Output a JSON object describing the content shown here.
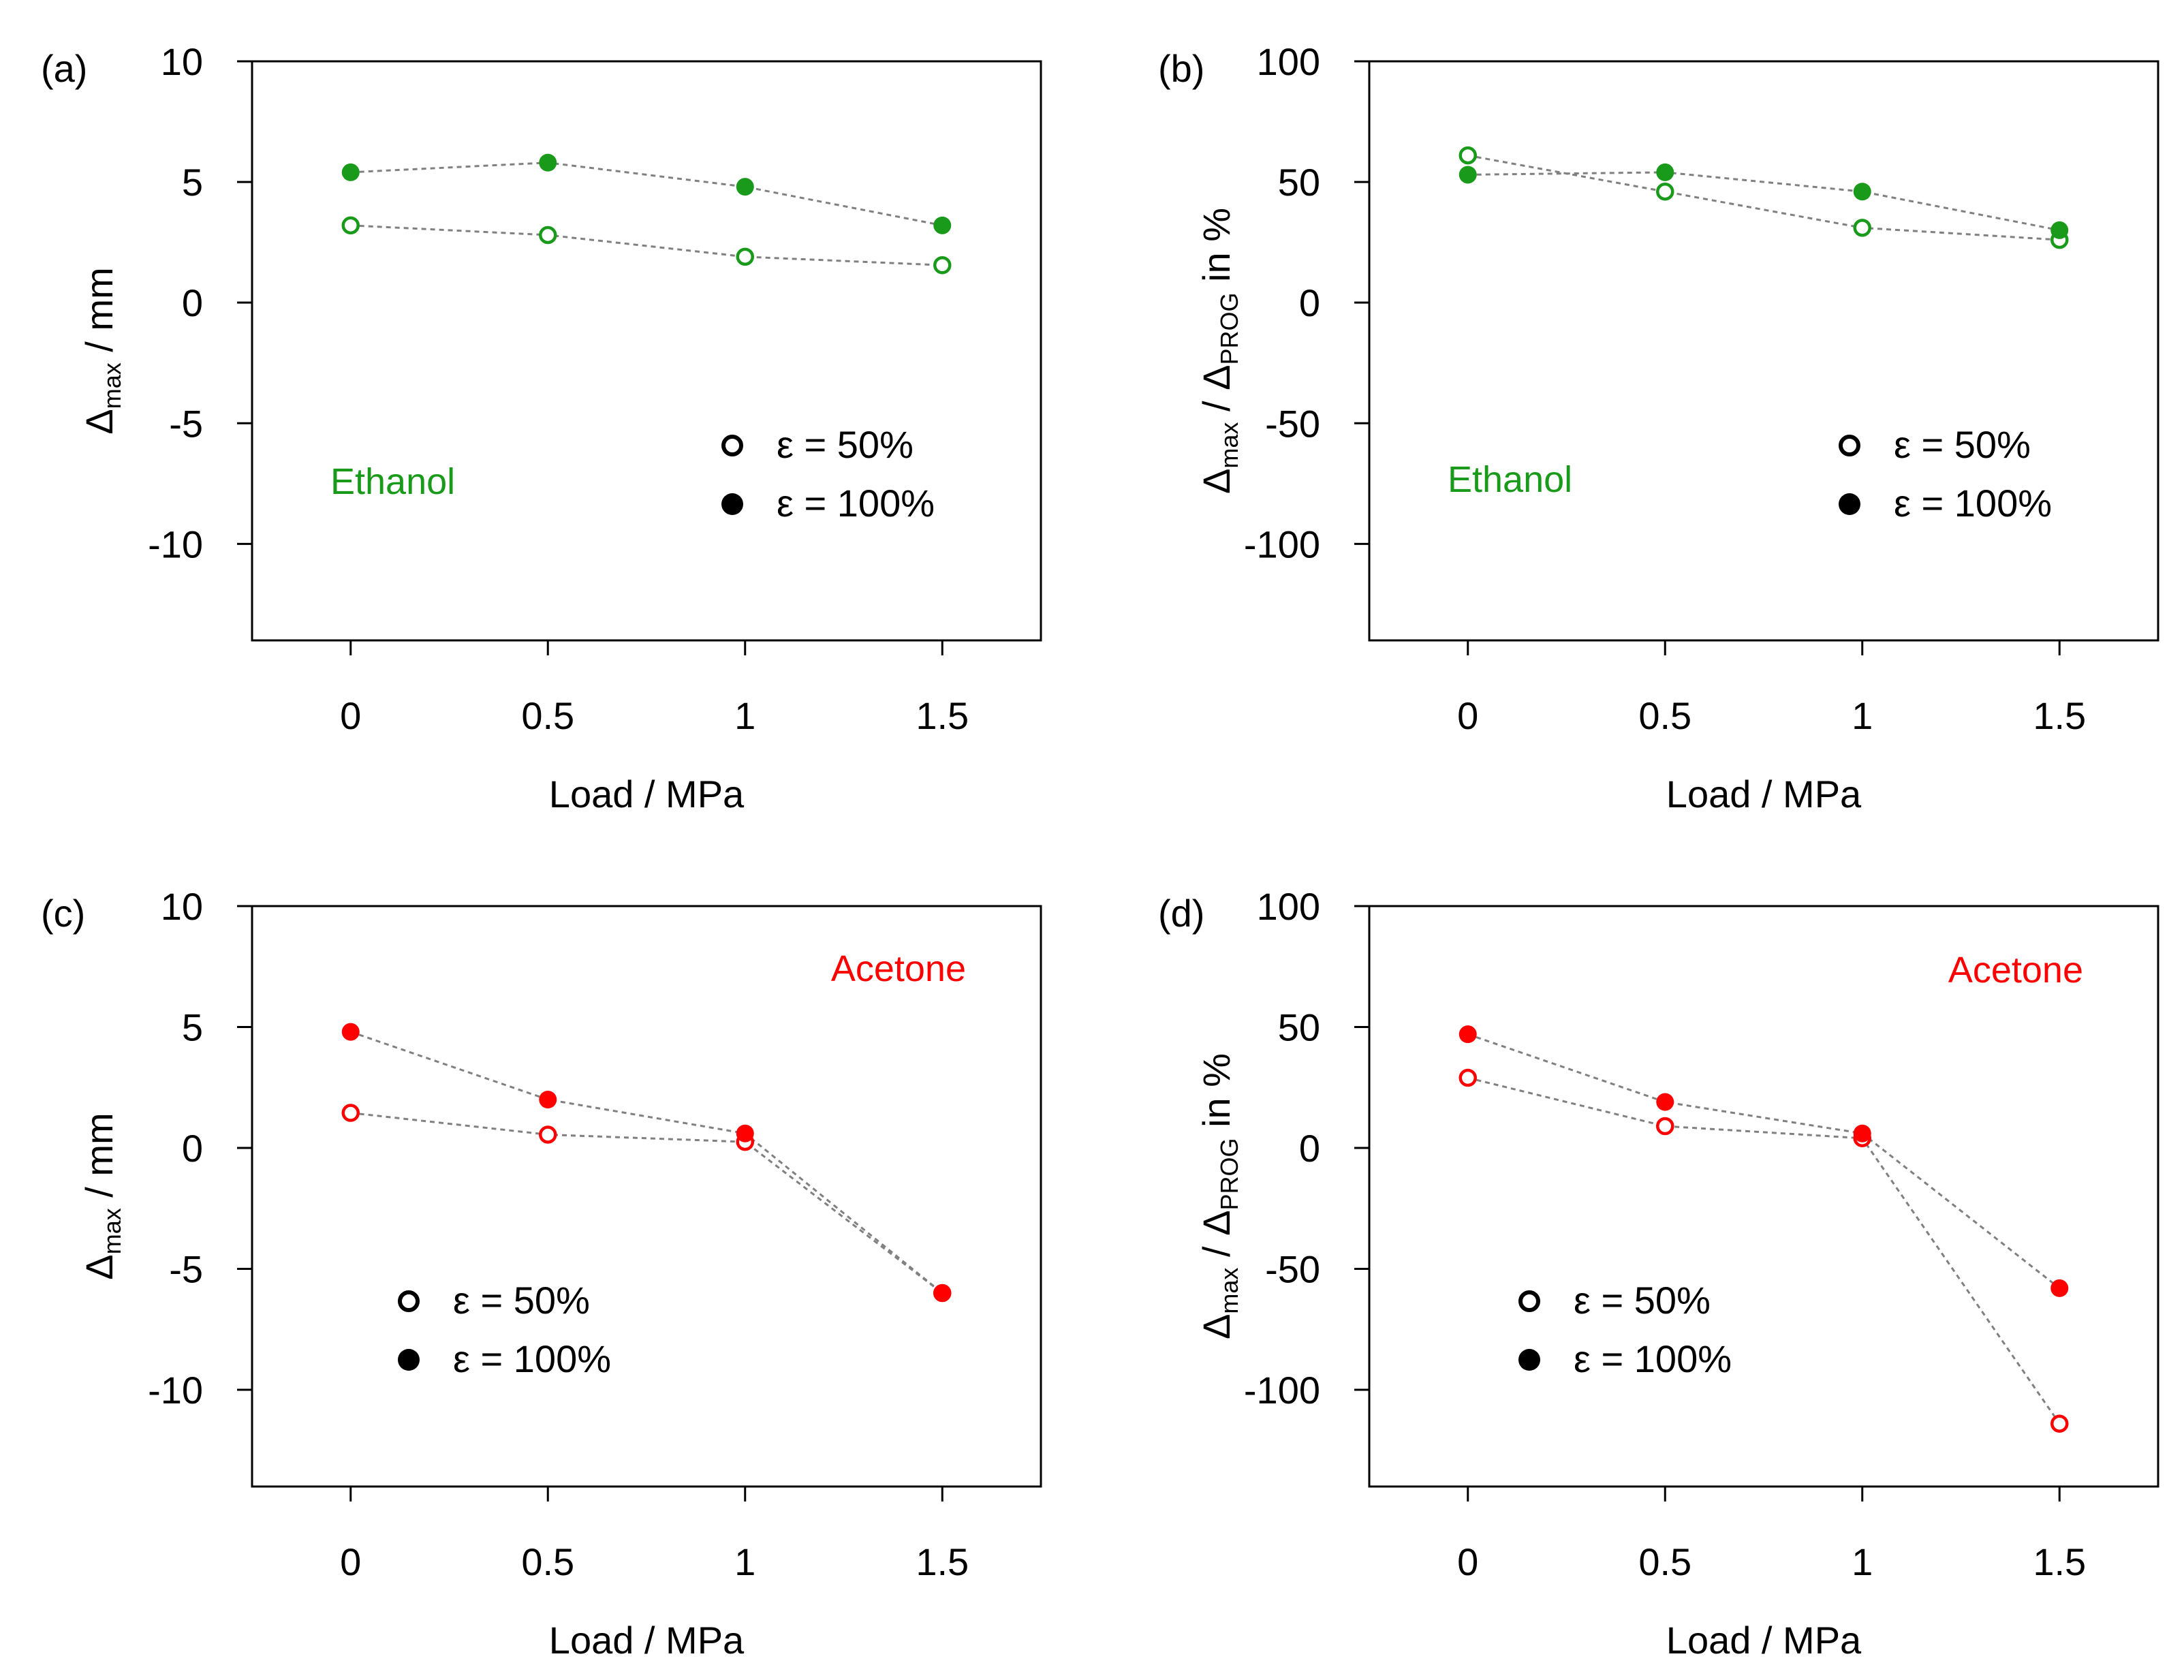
{
  "figure": {
    "series_names": [
      "ε = 50%",
      "ε = 100%"
    ],
    "colors": {
      "ethanol": "#1a9a1a",
      "acetone": "#ff0000",
      "connector": "#808080",
      "axis": "#000000",
      "legend_marker": "#000000"
    }
  },
  "chart_data": [
    {
      "id": "a",
      "type": "scatter",
      "panel_label": "(a)",
      "annotation": "Ethanol",
      "color": "#1a9a1a",
      "xlabel": "Load / MPa",
      "ylabel": {
        "base": "Δ",
        "sub": "max",
        "rest": " / mm"
      },
      "x": [
        0,
        0.5,
        1,
        1.5
      ],
      "xticks": [
        "0",
        "0.5",
        "1",
        "1.5"
      ],
      "xlim": [
        -0.25,
        1.75
      ],
      "ylim": [
        -14,
        10
      ],
      "yticks": [
        10,
        5,
        0,
        -5,
        -10
      ],
      "yticklabels": [
        "10",
        "5",
        "0",
        "-5",
        "-10"
      ],
      "legend": {
        "placement": "bottom-right",
        "entries": [
          "ε = 50%",
          "ε = 100%"
        ]
      },
      "series": [
        {
          "name": "ε = 50%",
          "filled": false,
          "values": [
            3.2,
            2.8,
            1.9,
            1.55
          ]
        },
        {
          "name": "ε = 100%",
          "filled": true,
          "values": [
            5.4,
            5.8,
            4.8,
            3.2
          ]
        }
      ]
    },
    {
      "id": "b",
      "type": "scatter",
      "panel_label": "(b)",
      "annotation": "Ethanol",
      "color": "#1a9a1a",
      "xlabel": "Load / MPa",
      "ylabel": {
        "base": "Δ",
        "sub": "max",
        "mid": " / Δ",
        "sub2": "PROG",
        "rest": " in %"
      },
      "x": [
        0,
        0.5,
        1,
        1.5
      ],
      "xticks": [
        "0",
        "0.5",
        "1",
        "1.5"
      ],
      "xlim": [
        -0.25,
        1.75
      ],
      "ylim": [
        -140,
        100
      ],
      "yticks": [
        100,
        50,
        0,
        -50,
        -100
      ],
      "yticklabels": [
        "100",
        "50",
        "0",
        "-50",
        "-100"
      ],
      "legend": {
        "placement": "bottom-right",
        "entries": [
          "ε = 50%",
          "ε = 100%"
        ]
      },
      "series": [
        {
          "name": "ε = 50%",
          "filled": false,
          "values": [
            61,
            46,
            31,
            26
          ]
        },
        {
          "name": "ε = 100%",
          "filled": true,
          "values": [
            53,
            54,
            46,
            30
          ]
        }
      ]
    },
    {
      "id": "c",
      "type": "scatter",
      "panel_label": "(c)",
      "annotation": "Acetone",
      "color": "#ff0000",
      "xlabel": "Load / MPa",
      "ylabel": {
        "base": "Δ",
        "sub": "max",
        "rest": " / mm"
      },
      "x": [
        0,
        0.5,
        1,
        1.5
      ],
      "xticks": [
        "0",
        "0.5",
        "1",
        "1.5"
      ],
      "xlim": [
        -0.25,
        1.75
      ],
      "ylim": [
        -14,
        10
      ],
      "yticks": [
        10,
        5,
        0,
        -5,
        -10
      ],
      "yticklabels": [
        "10",
        "5",
        "0",
        "-5",
        "-10"
      ],
      "legend": {
        "placement": "bottom-left",
        "entries": [
          "ε = 50%",
          "ε = 100%"
        ]
      },
      "series": [
        {
          "name": "ε = 50%",
          "filled": false,
          "values": [
            1.45,
            0.55,
            0.25,
            -6.0
          ]
        },
        {
          "name": "ε = 100%",
          "filled": true,
          "values": [
            4.8,
            2.0,
            0.6,
            -6.0
          ]
        }
      ]
    },
    {
      "id": "d",
      "type": "scatter",
      "panel_label": "(d)",
      "annotation": "Acetone",
      "color": "#ff0000",
      "xlabel": "Load / MPa",
      "ylabel": {
        "base": "Δ",
        "sub": "max",
        "mid": " / Δ",
        "sub2": "PROG",
        "rest": " in %"
      },
      "x": [
        0,
        0.5,
        1,
        1.5
      ],
      "xticks": [
        "0",
        "0.5",
        "1",
        "1.5"
      ],
      "xlim": [
        -0.25,
        1.75
      ],
      "ylim": [
        -140,
        100
      ],
      "yticks": [
        100,
        50,
        0,
        -50,
        -100
      ],
      "yticklabels": [
        "100",
        "50",
        "0",
        "-50",
        "-100"
      ],
      "legend": {
        "placement": "bottom-left",
        "entries": [
          "ε = 50%",
          "ε = 100%"
        ]
      },
      "series": [
        {
          "name": "ε = 50%",
          "filled": false,
          "values": [
            29,
            9,
            4,
            -114
          ]
        },
        {
          "name": "ε = 100%",
          "filled": true,
          "values": [
            47,
            19,
            6,
            -58
          ]
        }
      ]
    }
  ]
}
